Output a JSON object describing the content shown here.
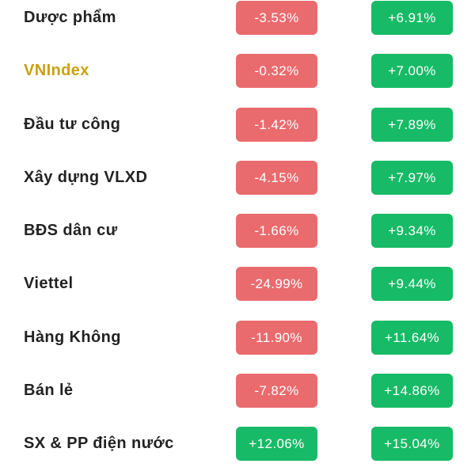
{
  "colors": {
    "negative": "#ea6b6e",
    "positive": "#17ba66",
    "highlight_text": "#c9a010",
    "text": "#222222"
  },
  "rows": [
    {
      "name": "Dược phẩm",
      "change_1": "-3.53%",
      "change_2": "+6.91%"
    },
    {
      "name": "VNIndex",
      "change_1": "-0.32%",
      "change_2": "+7.00%"
    },
    {
      "name": "Đầu tư công",
      "change_1": "-1.42%",
      "change_2": "+7.89%"
    },
    {
      "name": "Xây dựng VLXD",
      "change_1": "-4.15%",
      "change_2": "+7.97%"
    },
    {
      "name": "BĐS dân cư",
      "change_1": "-1.66%",
      "change_2": "+9.34%"
    },
    {
      "name": "Viettel",
      "change_1": "-24.99%",
      "change_2": "+9.44%"
    },
    {
      "name": "Hàng Không",
      "change_1": "-11.90%",
      "change_2": "+11.64%"
    },
    {
      "name": "Bán lẻ",
      "change_1": "-7.82%",
      "change_2": "+14.86%"
    },
    {
      "name": "SX & PP điện nước",
      "change_1": "+12.06%",
      "change_2": "+15.04%"
    }
  ]
}
